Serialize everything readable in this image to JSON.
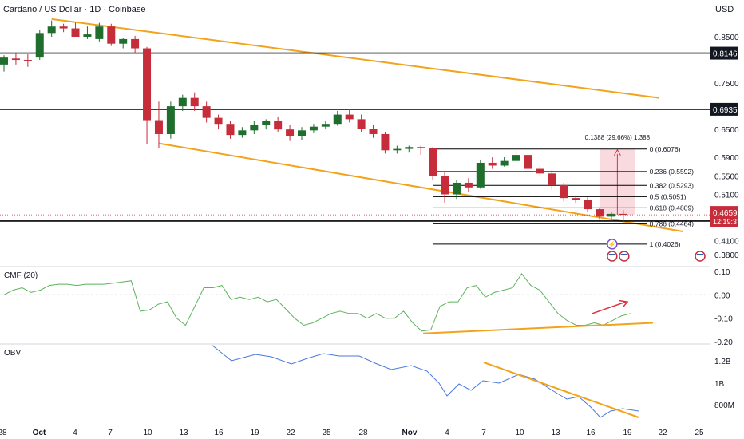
{
  "header": {
    "title": "Cardano / US Dollar · 1D · Coinbase",
    "currency": "USD"
  },
  "colors": {
    "bull": "#1f6e2e",
    "bear": "#c62c3a",
    "trend": "#f2a31c",
    "cmf": "#5bb35b",
    "obv": "#4a78d8",
    "arrow": "#e0303f",
    "level": "#000000",
    "range_fill": "#f7cad1"
  },
  "chart_data": [
    {
      "type": "candlestick",
      "title": "Cardano / US Dollar · 1D · Coinbase",
      "ylabel": "USD",
      "ylim": [
        0.36,
        0.905
      ],
      "ticks": [
        "0.8500",
        "0.7500",
        "0.6500",
        "0.5900",
        "0.5500",
        "0.5100",
        "0.4100",
        "0.3800"
      ],
      "x_labels": [
        "28",
        "Oct",
        "4",
        "7",
        "10",
        "13",
        "16",
        "19",
        "22",
        "25",
        "28",
        "Nov",
        "4",
        "7",
        "10",
        "13",
        "16",
        "19",
        "22",
        "25"
      ],
      "candles": [
        {
          "x": "Sep 28",
          "o": 0.79,
          "h": 0.81,
          "l": 0.775,
          "c": 0.805
        },
        {
          "x": "Sep 29",
          "o": 0.803,
          "h": 0.815,
          "l": 0.79,
          "c": 0.8
        },
        {
          "x": "Sep 30",
          "o": 0.8,
          "h": 0.812,
          "l": 0.785,
          "c": 0.798
        },
        {
          "x": "Oct 1",
          "o": 0.805,
          "h": 0.865,
          "l": 0.8,
          "c": 0.858
        },
        {
          "x": "Oct 2",
          "o": 0.858,
          "h": 0.885,
          "l": 0.85,
          "c": 0.872
        },
        {
          "x": "Oct 3",
          "o": 0.872,
          "h": 0.878,
          "l": 0.86,
          "c": 0.868
        },
        {
          "x": "Oct 4",
          "o": 0.868,
          "h": 0.88,
          "l": 0.85,
          "c": 0.85
        },
        {
          "x": "Oct 5",
          "o": 0.85,
          "h": 0.872,
          "l": 0.845,
          "c": 0.855
        },
        {
          "x": "Oct 6",
          "o": 0.845,
          "h": 0.88,
          "l": 0.84,
          "c": 0.872
        },
        {
          "x": "Oct 7",
          "o": 0.872,
          "h": 0.878,
          "l": 0.83,
          "c": 0.835
        },
        {
          "x": "Oct 8",
          "o": 0.835,
          "h": 0.848,
          "l": 0.825,
          "c": 0.845
        },
        {
          "x": "Oct 9",
          "o": 0.845,
          "h": 0.852,
          "l": 0.815,
          "c": 0.825
        },
        {
          "x": "Oct 10",
          "o": 0.825,
          "h": 0.828,
          "l": 0.618,
          "c": 0.67
        },
        {
          "x": "Oct 11",
          "o": 0.67,
          "h": 0.71,
          "l": 0.61,
          "c": 0.64
        },
        {
          "x": "Oct 12",
          "o": 0.64,
          "h": 0.71,
          "l": 0.63,
          "c": 0.7
        },
        {
          "x": "Oct 13",
          "o": 0.7,
          "h": 0.725,
          "l": 0.69,
          "c": 0.718
        },
        {
          "x": "Oct 14",
          "o": 0.718,
          "h": 0.73,
          "l": 0.69,
          "c": 0.7
        },
        {
          "x": "Oct 15",
          "o": 0.7,
          "h": 0.71,
          "l": 0.665,
          "c": 0.675
        },
        {
          "x": "Oct 16",
          "o": 0.675,
          "h": 0.682,
          "l": 0.65,
          "c": 0.662
        },
        {
          "x": "Oct 17",
          "o": 0.662,
          "h": 0.668,
          "l": 0.63,
          "c": 0.638
        },
        {
          "x": "Oct 18",
          "o": 0.638,
          "h": 0.655,
          "l": 0.632,
          "c": 0.648
        },
        {
          "x": "Oct 19",
          "o": 0.648,
          "h": 0.668,
          "l": 0.64,
          "c": 0.66
        },
        {
          "x": "Oct 20",
          "o": 0.66,
          "h": 0.672,
          "l": 0.65,
          "c": 0.668
        },
        {
          "x": "Oct 21",
          "o": 0.668,
          "h": 0.678,
          "l": 0.645,
          "c": 0.65
        },
        {
          "x": "Oct 22",
          "o": 0.65,
          "h": 0.66,
          "l": 0.625,
          "c": 0.635
        },
        {
          "x": "Oct 23",
          "o": 0.635,
          "h": 0.655,
          "l": 0.628,
          "c": 0.648
        },
        {
          "x": "Oct 24",
          "o": 0.648,
          "h": 0.662,
          "l": 0.642,
          "c": 0.656
        },
        {
          "x": "Oct 25",
          "o": 0.656,
          "h": 0.668,
          "l": 0.65,
          "c": 0.662
        },
        {
          "x": "Oct 26",
          "o": 0.662,
          "h": 0.69,
          "l": 0.658,
          "c": 0.682
        },
        {
          "x": "Oct 27",
          "o": 0.682,
          "h": 0.695,
          "l": 0.665,
          "c": 0.672
        },
        {
          "x": "Oct 28",
          "o": 0.672,
          "h": 0.682,
          "l": 0.645,
          "c": 0.652
        },
        {
          "x": "Oct 29",
          "o": 0.652,
          "h": 0.66,
          "l": 0.632,
          "c": 0.64
        },
        {
          "x": "Oct 30",
          "o": 0.64,
          "h": 0.645,
          "l": 0.598,
          "c": 0.605
        },
        {
          "x": "Oct 31",
          "o": 0.605,
          "h": 0.615,
          "l": 0.598,
          "c": 0.608
        },
        {
          "x": "Nov 1",
          "o": 0.608,
          "h": 0.615,
          "l": 0.6,
          "c": 0.612
        },
        {
          "x": "Nov 2",
          "o": 0.612,
          "h": 0.615,
          "l": 0.595,
          "c": 0.61
        },
        {
          "x": "Nov 3",
          "o": 0.61,
          "h": 0.612,
          "l": 0.54,
          "c": 0.55
        },
        {
          "x": "Nov 4",
          "o": 0.55,
          "h": 0.56,
          "l": 0.492,
          "c": 0.51
        },
        {
          "x": "Nov 5",
          "o": 0.51,
          "h": 0.54,
          "l": 0.5,
          "c": 0.535
        },
        {
          "x": "Nov 6",
          "o": 0.535,
          "h": 0.545,
          "l": 0.515,
          "c": 0.525
        },
        {
          "x": "Nov 7",
          "o": 0.525,
          "h": 0.585,
          "l": 0.522,
          "c": 0.578
        },
        {
          "x": "Nov 8",
          "o": 0.578,
          "h": 0.59,
          "l": 0.565,
          "c": 0.572
        },
        {
          "x": "Nov 9",
          "o": 0.572,
          "h": 0.59,
          "l": 0.57,
          "c": 0.582
        },
        {
          "x": "Nov 10",
          "o": 0.582,
          "h": 0.605,
          "l": 0.578,
          "c": 0.595
        },
        {
          "x": "Nov 11",
          "o": 0.595,
          "h": 0.605,
          "l": 0.56,
          "c": 0.565
        },
        {
          "x": "Nov 12",
          "o": 0.565,
          "h": 0.572,
          "l": 0.548,
          "c": 0.555
        },
        {
          "x": "Nov 13",
          "o": 0.555,
          "h": 0.562,
          "l": 0.52,
          "c": 0.53
        },
        {
          "x": "Nov 14",
          "o": 0.53,
          "h": 0.535,
          "l": 0.495,
          "c": 0.502
        },
        {
          "x": "Nov 15",
          "o": 0.502,
          "h": 0.508,
          "l": 0.492,
          "c": 0.498
        },
        {
          "x": "Nov 16",
          "o": 0.498,
          "h": 0.505,
          "l": 0.472,
          "c": 0.478
        },
        {
          "x": "Nov 17",
          "o": 0.478,
          "h": 0.482,
          "l": 0.455,
          "c": 0.462
        },
        {
          "x": "Nov 18",
          "o": 0.462,
          "h": 0.472,
          "l": 0.452,
          "c": 0.468
        },
        {
          "x": "Nov 19",
          "o": 0.468,
          "h": 0.476,
          "l": 0.45,
          "c": 0.4659
        }
      ],
      "levels": [
        {
          "label": "0.8146",
          "value": 0.8146
        },
        {
          "label": "0.6935",
          "value": 0.6935
        },
        {
          "label": "0.4525",
          "value": 0.4525
        }
      ],
      "fib_levels": [
        {
          "label": "0 (0.6076)",
          "value": 0.6076
        },
        {
          "label": "0.236 (0.5592)",
          "value": 0.5592
        },
        {
          "label": "0.382 (0.5293)",
          "value": 0.5293
        },
        {
          "label": "0.5 (0.5051)",
          "value": 0.5051
        },
        {
          "label": "0.618 (0.4809)",
          "value": 0.4809
        },
        {
          "label": "0.786 (0.4464)",
          "value": 0.4464
        },
        {
          "label": "1 (0.4026)",
          "value": 0.4026
        }
      ],
      "measure_label": "0.1388 (29.66%) 1,388",
      "last_price": {
        "label": "0.4659",
        "value": 0.4659
      },
      "countdown": "12:19:37",
      "trendlines": [
        {
          "from": [
            "Oct 2",
            0.888
          ],
          "to": [
            "Nov 22",
            0.718
          ]
        },
        {
          "from": [
            "Oct 11",
            0.62
          ],
          "to": [
            "Nov 24",
            0.43
          ]
        }
      ]
    },
    {
      "type": "line",
      "title": "CMF (20)",
      "ylim": [
        -0.2,
        0.1
      ],
      "ticks": [
        "0.10",
        "0.00",
        "-0.10",
        "-0.20"
      ],
      "zero_line": 0,
      "series": [
        {
          "values": [
            0.0,
            0.02,
            0.03,
            0.01,
            0.02,
            0.04,
            0.045,
            0.045,
            0.04,
            0.045,
            0.045,
            0.045,
            0.05,
            0.055,
            0.06,
            -0.07,
            -0.065,
            -0.04,
            -0.03,
            -0.1,
            -0.13,
            -0.05,
            0.03,
            0.03,
            0.04,
            -0.02,
            -0.01,
            -0.02,
            -0.01,
            -0.03,
            -0.02,
            -0.06,
            -0.1,
            -0.13,
            -0.12,
            -0.1,
            -0.08,
            -0.07,
            -0.08,
            -0.08,
            -0.1,
            -0.08,
            -0.1,
            -0.1,
            -0.07,
            -0.12,
            -0.155,
            -0.15,
            -0.05,
            -0.03,
            -0.03,
            0.03,
            0.04,
            -0.01,
            0.01,
            0.02,
            0.03,
            0.09,
            0.04,
            0.02,
            -0.03,
            -0.08,
            -0.11,
            -0.13,
            -0.13,
            -0.12,
            -0.13,
            -0.11,
            -0.09,
            -0.08
          ]
        }
      ],
      "trendline": {
        "from": [
          -0.165
        ],
        "to": [
          -0.12
        ]
      }
    },
    {
      "type": "line",
      "title": "OBV",
      "ticks": [
        "1.2B",
        "1B",
        "800M"
      ]
    }
  ]
}
